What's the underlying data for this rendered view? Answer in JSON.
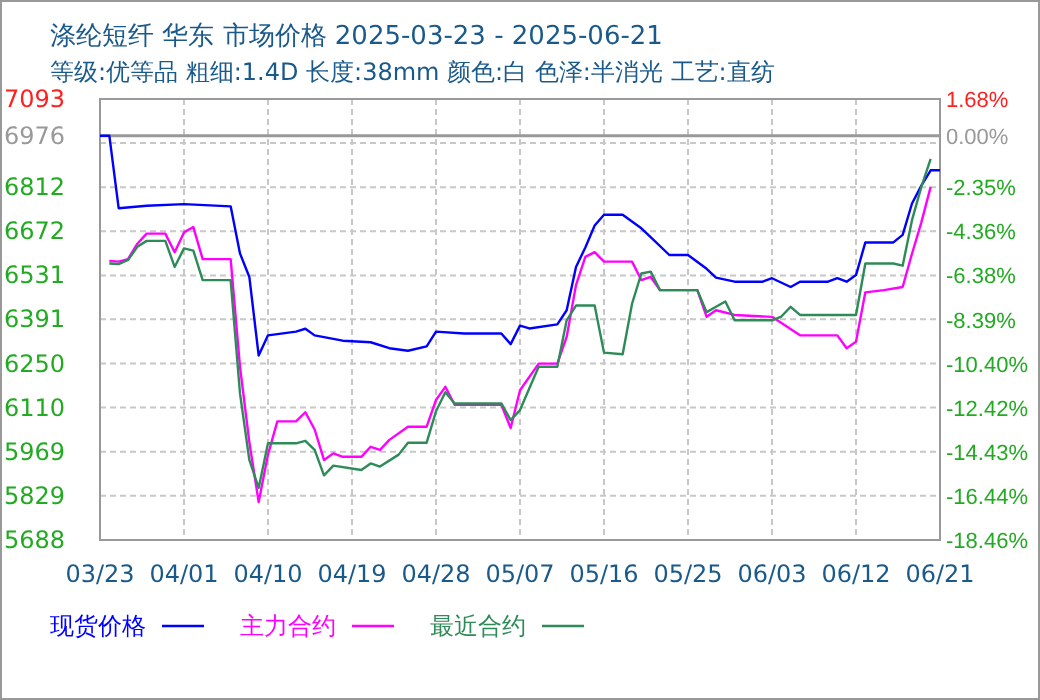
{
  "chart_data": {
    "type": "line",
    "title": "涤纶短纤 华东 市场价格 2025-03-23 - 2025-06-21",
    "subtitle": "等级:优等品 粗细:1.4D 长度:38mm 颜色:白 色泽:半消光 工艺:直纺",
    "xlim": [
      "2025-03-23",
      "2025-06-21"
    ],
    "xticks": [
      {
        "value": "2025-03-23",
        "label": "03/23"
      },
      {
        "value": "2025-04-01",
        "label": "04/01"
      },
      {
        "value": "2025-04-10",
        "label": "04/10"
      },
      {
        "value": "2025-04-19",
        "label": "04/19"
      },
      {
        "value": "2025-04-28",
        "label": "04/28"
      },
      {
        "value": "2025-05-07",
        "label": "05/07"
      },
      {
        "value": "2025-05-16",
        "label": "05/16"
      },
      {
        "value": "2025-05-25",
        "label": "05/25"
      },
      {
        "value": "2025-06-03",
        "label": "06/03"
      },
      {
        "value": "2025-06-12",
        "label": "06/12"
      },
      {
        "value": "2025-06-21",
        "label": "06/21"
      }
    ],
    "ylim": [
      5688,
      7093
    ],
    "yticks": [
      7093,
      {
        "value": 6952.5,
        "label": null
      },
      6812,
      6672,
      6531,
      6391,
      6250,
      6110,
      5969,
      5829,
      5688
    ],
    "y2lim": [
      -18.46,
      1.68
    ],
    "y2ticks": [
      {
        "value": 1.68,
        "label": "1.68%"
      },
      {
        "value": 0,
        "label": "0.00%"
      },
      {
        "value": -2.35,
        "label": "-2.35%"
      },
      {
        "value": -4.36,
        "label": "-4.36%"
      },
      {
        "value": -6.38,
        "label": "-6.38%"
      },
      {
        "value": -8.39,
        "label": "-8.39%"
      },
      {
        "value": -10.4,
        "label": "-10.40%"
      },
      {
        "value": -12.42,
        "label": "-12.42%"
      },
      {
        "value": -14.43,
        "label": "-14.43%"
      },
      {
        "value": -16.44,
        "label": "-16.44%"
      },
      {
        "value": -18.46,
        "label": "-18.46%"
      }
    ],
    "ref_lines": [
      {
        "axis": "y",
        "value": 6976,
        "label": "6976",
        "color": "#999999"
      }
    ],
    "grid": true,
    "legend": "bottom",
    "marker": "none",
    "line_style": "solid",
    "series": [
      {
        "name": "现货价格",
        "color": "#0000ff",
        "x": [
          "2025-03-23",
          "2025-03-24",
          "2025-03-25",
          "2025-03-28",
          "2025-04-01",
          "2025-04-06",
          "2025-04-07",
          "2025-04-08",
          "2025-04-09",
          "2025-04-10",
          "2025-04-13",
          "2025-04-14",
          "2025-04-15",
          "2025-04-18",
          "2025-04-21",
          "2025-04-23",
          "2025-04-25",
          "2025-04-27",
          "2025-04-28",
          "2025-05-01",
          "2025-05-05",
          "2025-05-06",
          "2025-05-07",
          "2025-05-08",
          "2025-05-11",
          "2025-05-12",
          "2025-05-13",
          "2025-05-14",
          "2025-05-15",
          "2025-05-16",
          "2025-05-18",
          "2025-05-20",
          "2025-05-21",
          "2025-05-23",
          "2025-05-25",
          "2025-05-27",
          "2025-05-28",
          "2025-05-30",
          "2025-06-02",
          "2025-06-03",
          "2025-06-05",
          "2025-06-06",
          "2025-06-09",
          "2025-06-10",
          "2025-06-11",
          "2025-06-12",
          "2025-06-13",
          "2025-06-16",
          "2025-06-17",
          "2025-06-18",
          "2025-06-19",
          "2025-06-20",
          "2025-06-21"
        ],
        "values": [
          6976,
          6976,
          6745,
          6753,
          6758,
          6751,
          6601,
          6526,
          6276,
          6340,
          6352,
          6361,
          6340,
          6323,
          6318,
          6299,
          6291,
          6305,
          6352,
          6346,
          6346,
          6312,
          6371,
          6362,
          6375,
          6420,
          6558,
          6620,
          6690,
          6724,
          6724,
          6681,
          6653,
          6596,
          6596,
          6552,
          6524,
          6511,
          6511,
          6522,
          6494,
          6511,
          6511,
          6522,
          6511,
          6532,
          6636,
          6636,
          6660,
          6760,
          6817,
          6866,
          6866
        ]
      },
      {
        "name": "主力合约",
        "color": "#ff00ff",
        "x": [
          "2025-03-24",
          "2025-03-25",
          "2025-03-26",
          "2025-03-27",
          "2025-03-28",
          "2025-03-30",
          "2025-03-31",
          "2025-04-01",
          "2025-04-02",
          "2025-04-03",
          "2025-04-06",
          "2025-04-07",
          "2025-04-08",
          "2025-04-09",
          "2025-04-10",
          "2025-04-11",
          "2025-04-13",
          "2025-04-14",
          "2025-04-15",
          "2025-04-16",
          "2025-04-17",
          "2025-04-18",
          "2025-04-20",
          "2025-04-21",
          "2025-04-22",
          "2025-04-23",
          "2025-04-25",
          "2025-04-27",
          "2025-04-28",
          "2025-04-29",
          "2025-04-30",
          "2025-05-05",
          "2025-05-06",
          "2025-05-07",
          "2025-05-09",
          "2025-05-11",
          "2025-05-12",
          "2025-05-13",
          "2025-05-14",
          "2025-05-15",
          "2025-05-16",
          "2025-05-19",
          "2025-05-20",
          "2025-05-21",
          "2025-05-22",
          "2025-05-26",
          "2025-05-27",
          "2025-05-28",
          "2025-05-30",
          "2025-06-03",
          "2025-06-06",
          "2025-06-10",
          "2025-06-11",
          "2025-06-12",
          "2025-06-13",
          "2025-06-15",
          "2025-06-17",
          "2025-06-18",
          "2025-06-19",
          "2025-06-20"
        ],
        "values": [
          6577,
          6575,
          6583,
          6632,
          6664,
          6664,
          6605,
          6668,
          6685,
          6583,
          6583,
          6240,
          6000,
          5809,
          5960,
          6066,
          6066,
          6095,
          6040,
          5943,
          5964,
          5953,
          5953,
          5985,
          5975,
          6007,
          6049,
          6049,
          6134,
          6176,
          6119,
          6119,
          6045,
          6165,
          6250,
          6250,
          6335,
          6500,
          6590,
          6605,
          6575,
          6575,
          6516,
          6526,
          6484,
          6484,
          6399,
          6420,
          6405,
          6399,
          6340,
          6340,
          6299,
          6320,
          6477,
          6484,
          6494,
          6600,
          6700,
          6813
        ]
      },
      {
        "name": "最近合约",
        "color": "#2e8b57",
        "x": [
          "2025-03-24",
          "2025-03-25",
          "2025-03-26",
          "2025-03-27",
          "2025-03-28",
          "2025-03-30",
          "2025-03-31",
          "2025-04-01",
          "2025-04-02",
          "2025-04-03",
          "2025-04-06",
          "2025-04-07",
          "2025-04-08",
          "2025-04-09",
          "2025-04-10",
          "2025-04-13",
          "2025-04-14",
          "2025-04-15",
          "2025-04-16",
          "2025-04-17",
          "2025-04-20",
          "2025-04-21",
          "2025-04-22",
          "2025-04-24",
          "2025-04-25",
          "2025-04-27",
          "2025-04-28",
          "2025-04-29",
          "2025-04-30",
          "2025-05-05",
          "2025-05-06",
          "2025-05-07",
          "2025-05-09",
          "2025-05-11",
          "2025-05-12",
          "2025-05-13",
          "2025-05-15",
          "2025-05-16",
          "2025-05-18",
          "2025-05-19",
          "2025-05-20",
          "2025-05-21",
          "2025-05-22",
          "2025-05-26",
          "2025-05-27",
          "2025-05-28",
          "2025-05-29",
          "2025-05-30",
          "2025-06-03",
          "2025-06-04",
          "2025-06-05",
          "2025-06-06",
          "2025-06-12",
          "2025-06-13",
          "2025-06-16",
          "2025-06-17",
          "2025-06-18",
          "2025-06-19",
          "2025-06-20"
        ],
        "values": [
          6569,
          6567,
          6580,
          6622,
          6641,
          6641,
          6558,
          6617,
          6610,
          6516,
          6516,
          6155,
          5943,
          5854,
          5996,
          5996,
          6004,
          5975,
          5894,
          5925,
          5911,
          5932,
          5922,
          5960,
          5998,
          5998,
          6098,
          6159,
          6123,
          6123,
          6070,
          6102,
          6240,
          6240,
          6388,
          6435,
          6435,
          6285,
          6280,
          6440,
          6537,
          6543,
          6484,
          6484,
          6414,
          6431,
          6448,
          6388,
          6388,
          6400,
          6431,
          6405,
          6405,
          6569,
          6569,
          6562,
          6707,
          6813,
          6902
        ]
      }
    ]
  }
}
